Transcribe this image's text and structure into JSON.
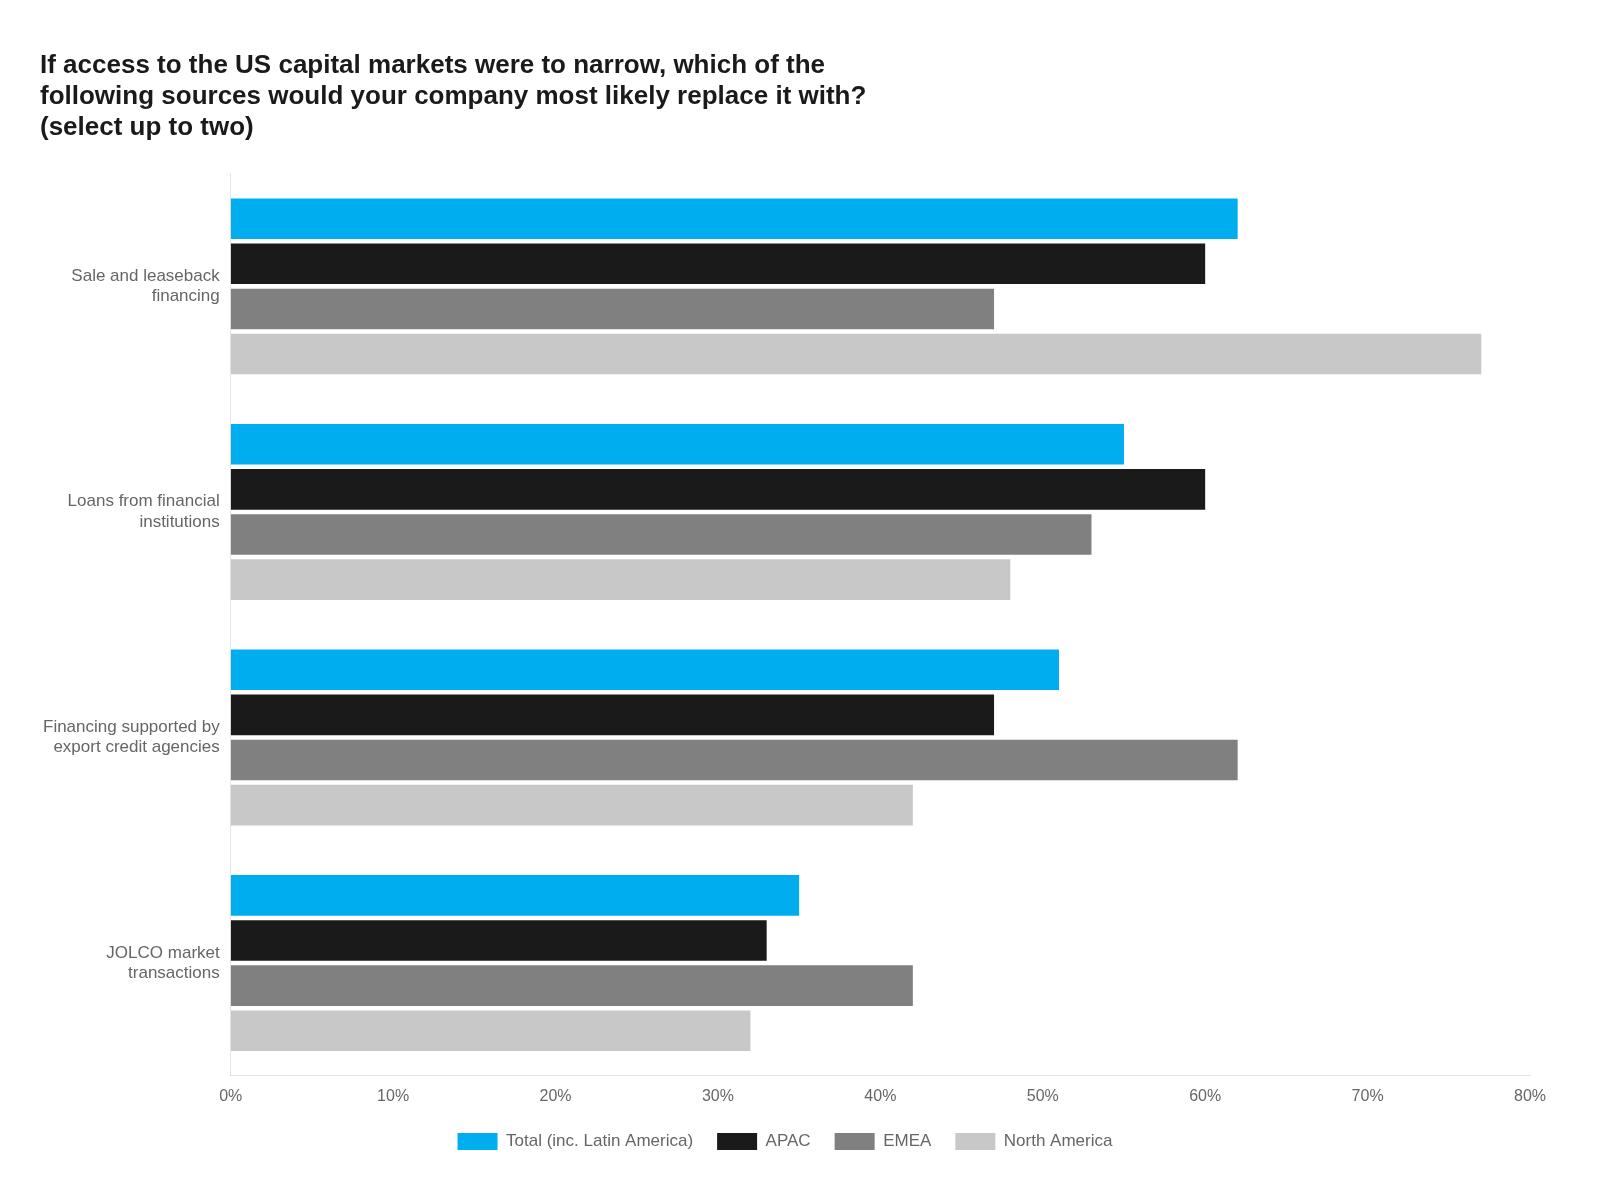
{
  "chart_data": {
    "type": "bar",
    "orientation": "horizontal",
    "title": "If access to the US capital markets were to narrow, which of the\nfollowing sources would your company most likely replace it with?\n(select up to two)",
    "categories": [
      "Sale and leaseback\nfinancing",
      "Loans from financial\ninstitutions",
      "Financing supported by\nexport credit agencies",
      "JOLCO market\ntransactions"
    ],
    "series": [
      {
        "name": "Total (inc. Latin America)",
        "color": "#00AEEF",
        "values": [
          62,
          55,
          51,
          35
        ]
      },
      {
        "name": "APAC",
        "color": "#1A1A1A",
        "values": [
          60,
          60,
          47,
          33
        ]
      },
      {
        "name": "EMEA",
        "color": "#808080",
        "values": [
          47,
          53,
          62,
          42
        ]
      },
      {
        "name": "North America",
        "color": "#C8C8C8",
        "values": [
          77,
          48,
          42,
          32
        ]
      }
    ],
    "xlim": [
      0,
      80
    ],
    "xticks": [
      {
        "value": 0,
        "label": "0%"
      },
      {
        "value": 10,
        "label": "10%"
      },
      {
        "value": 20,
        "label": "20%"
      },
      {
        "value": 30,
        "label": "30%"
      },
      {
        "value": 40,
        "label": "40%"
      },
      {
        "value": 50,
        "label": "50%"
      },
      {
        "value": 60,
        "label": "60%"
      },
      {
        "value": 70,
        "label": "70%"
      },
      {
        "value": 80,
        "label": "80%"
      }
    ],
    "grid": false,
    "legend": "bottom"
  }
}
